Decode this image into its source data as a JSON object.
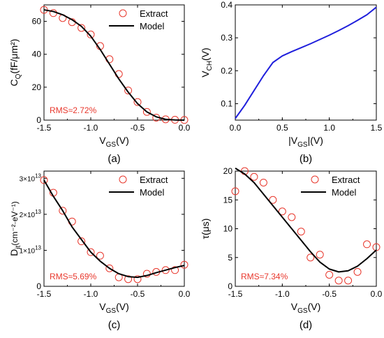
{
  "chart_data": [
    {
      "type": "line",
      "panel_label": "(a)",
      "xlabel": {
        "main": "V",
        "sub": "GS",
        "tail": "(V)"
      },
      "ylabel": {
        "main": "C",
        "sub": "Q",
        "tail": "(fF/μm²)"
      },
      "xlim": [
        -1.5,
        0.0
      ],
      "ylim": [
        0,
        70
      ],
      "xticks": [
        {
          "v": -1.5,
          "label": "-1.5"
        },
        {
          "v": -1.0,
          "label": "-1.0"
        },
        {
          "v": -0.5,
          "label": "-0.5"
        },
        {
          "v": 0.0,
          "label": "0.0"
        }
      ],
      "yticks": [
        {
          "v": 0,
          "label": "0"
        },
        {
          "v": 20,
          "label": "20"
        },
        {
          "v": 40,
          "label": "40"
        },
        {
          "v": 60,
          "label": "60"
        }
      ],
      "legend": [
        "Extract",
        "Model"
      ],
      "annotation": "RMS≈2.72%",
      "series": [
        {
          "name": "Extract",
          "style": "markers",
          "x": [
            -1.5,
            -1.4,
            -1.3,
            -1.2,
            -1.1,
            -1.0,
            -0.9,
            -0.8,
            -0.7,
            -0.6,
            -0.5,
            -0.4,
            -0.3,
            -0.2,
            -0.1,
            0.0
          ],
          "y": [
            67,
            65,
            62,
            59.5,
            56,
            52,
            45,
            37,
            28,
            18,
            11,
            5,
            1.5,
            0.5,
            0.2,
            0.1
          ]
        },
        {
          "name": "Model",
          "style": "line",
          "x": [
            -1.5,
            -1.4,
            -1.3,
            -1.2,
            -1.1,
            -1.0,
            -0.9,
            -0.8,
            -0.7,
            -0.6,
            -0.5,
            -0.4,
            -0.3,
            -0.2,
            -0.1,
            0.0
          ],
          "y": [
            67,
            66,
            64,
            61,
            57,
            51,
            43,
            34,
            25,
            17,
            10,
            5,
            2,
            0.5,
            0.1,
            0
          ]
        }
      ]
    },
    {
      "type": "line",
      "panel_label": "(b)",
      "xlabel": {
        "main": "|V",
        "sub": "GS",
        "tail": "|(V)"
      },
      "ylabel": {
        "main": "V",
        "sub": "CH",
        "tail": "(V)"
      },
      "xlim": [
        0.0,
        1.5
      ],
      "ylim": [
        0.05,
        0.4
      ],
      "xticks": [
        {
          "v": 0.0,
          "label": "0.0"
        },
        {
          "v": 0.5,
          "label": "0.5"
        },
        {
          "v": 1.0,
          "label": "1.0"
        },
        {
          "v": 1.5,
          "label": "1.5"
        }
      ],
      "yticks": [
        {
          "v": 0.1,
          "label": "0.1"
        },
        {
          "v": 0.2,
          "label": "0.2"
        },
        {
          "v": 0.3,
          "label": "0.3"
        },
        {
          "v": 0.4,
          "label": "0.4"
        }
      ],
      "series": [
        {
          "style": "line",
          "color": "#1f1fdc",
          "x": [
            0.0,
            0.1,
            0.2,
            0.3,
            0.4,
            0.5,
            0.6,
            0.7,
            0.8,
            0.9,
            1.0,
            1.1,
            1.2,
            1.3,
            1.4,
            1.5
          ],
          "y": [
            0.055,
            0.095,
            0.14,
            0.185,
            0.225,
            0.245,
            0.258,
            0.27,
            0.282,
            0.295,
            0.308,
            0.322,
            0.337,
            0.353,
            0.37,
            0.393
          ]
        }
      ]
    },
    {
      "type": "line",
      "panel_label": "(c)",
      "xlabel": {
        "main": "V",
        "sub": "GS",
        "tail": "(V)"
      },
      "ylabel": {
        "main": "D",
        "sub": "it",
        "tail": "(cm⁻²·eV⁻¹)"
      },
      "xlim": [
        -1.5,
        0.0
      ],
      "ylim": [
        0,
        32000000000000
      ],
      "xticks": [
        {
          "v": -1.5,
          "label": "-1.5"
        },
        {
          "v": -1.0,
          "label": "-1.0"
        },
        {
          "v": -0.5,
          "label": "-0.5"
        },
        {
          "v": 0.0,
          "label": "0.0"
        }
      ],
      "yticks": [
        {
          "v": 0,
          "label": "0"
        },
        {
          "v": 10000000000000,
          "label": "1×10¹³"
        },
        {
          "v": 20000000000000,
          "label": "2×10¹³"
        },
        {
          "v": 30000000000000,
          "label": "3×10¹³"
        }
      ],
      "legend": [
        "Extract",
        "Model"
      ],
      "annotation": "RMS≈5.69%",
      "series": [
        {
          "name": "Extract",
          "style": "markers",
          "x": [
            -1.5,
            -1.4,
            -1.3,
            -1.2,
            -1.1,
            -1.0,
            -0.9,
            -0.8,
            -0.7,
            -0.6,
            -0.5,
            -0.4,
            -0.3,
            -0.2,
            -0.1,
            0.0
          ],
          "y": [
            29500000000000,
            26000000000000,
            21000000000000,
            18000000000000,
            12500000000000,
            9500000000000,
            8500000000000,
            5000000000000,
            2500000000000,
            2000000000000,
            2000000000000,
            3500000000000,
            4000000000000,
            4500000000000,
            4500000000000,
            6000000000000
          ]
        },
        {
          "name": "Model",
          "style": "line",
          "x": [
            -1.5,
            -1.4,
            -1.3,
            -1.2,
            -1.1,
            -1.0,
            -0.9,
            -0.8,
            -0.7,
            -0.6,
            -0.5,
            -0.4,
            -0.3,
            -0.2,
            -0.1,
            0.0
          ],
          "y": [
            29500000000000,
            25000000000000,
            21000000000000,
            16500000000000,
            13000000000000,
            9500000000000,
            7000000000000,
            5000000000000,
            3500000000000,
            2700000000000,
            2500000000000,
            3000000000000,
            3800000000000,
            4500000000000,
            5200000000000,
            5800000000000
          ]
        }
      ]
    },
    {
      "type": "line",
      "panel_label": "(d)",
      "xlabel": {
        "main": "V",
        "sub": "GS",
        "tail": "(V)"
      },
      "ylabel": {
        "main": "τ",
        "sub": "",
        "tail": "(μs)"
      },
      "xlim": [
        -1.5,
        0.0
      ],
      "ylim": [
        0,
        20
      ],
      "xticks": [
        {
          "v": -1.5,
          "label": "-1.5"
        },
        {
          "v": -1.0,
          "label": "-1.0"
        },
        {
          "v": -0.5,
          "label": "-0.5"
        },
        {
          "v": 0.0,
          "label": "0.0"
        }
      ],
      "yticks": [
        {
          "v": 0,
          "label": "0"
        },
        {
          "v": 5,
          "label": "5"
        },
        {
          "v": 10,
          "label": "10"
        },
        {
          "v": 15,
          "label": "15"
        },
        {
          "v": 20,
          "label": "20"
        }
      ],
      "legend": [
        "Extract",
        "Model"
      ],
      "annotation": "RMS≈7.34%",
      "series": [
        {
          "name": "Extract",
          "style": "markers",
          "x": [
            -1.5,
            -1.4,
            -1.3,
            -1.2,
            -1.1,
            -1.0,
            -0.9,
            -0.8,
            -0.7,
            -0.6,
            -0.5,
            -0.4,
            -0.3,
            -0.2,
            -0.1,
            0.0
          ],
          "y": [
            16.5,
            20,
            19,
            18,
            15,
            13,
            12,
            9.5,
            5,
            5.5,
            2,
            1,
            1,
            2.5,
            7.3,
            6.8
          ]
        },
        {
          "name": "Model",
          "style": "line",
          "x": [
            -1.5,
            -1.4,
            -1.3,
            -1.2,
            -1.1,
            -1.0,
            -0.9,
            -0.8,
            -0.7,
            -0.6,
            -0.5,
            -0.4,
            -0.3,
            -0.2,
            -0.1,
            0.0
          ],
          "y": [
            20.5,
            19.5,
            18,
            16,
            14,
            12,
            10,
            8,
            6,
            4.2,
            3,
            2.5,
            2.7,
            3.5,
            4.8,
            6.3
          ]
        }
      ]
    }
  ]
}
